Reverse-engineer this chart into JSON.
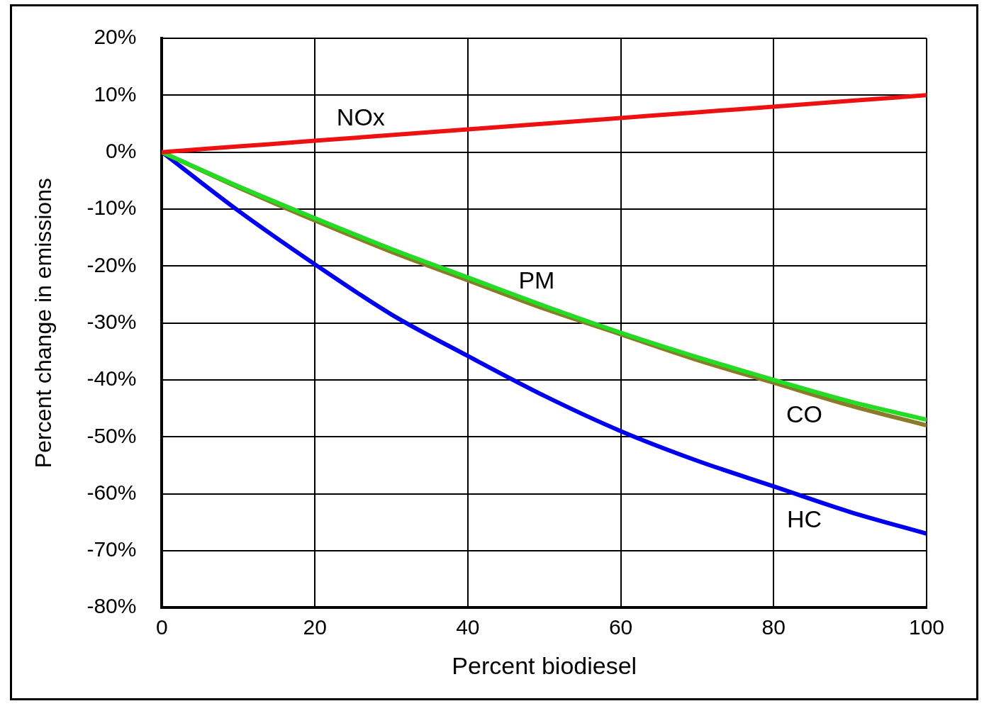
{
  "chart_data": {
    "type": "line",
    "xlabel": "Percent biodiesel",
    "ylabel": "Percent change in emissions",
    "x": [
      0,
      10,
      20,
      30,
      40,
      50,
      60,
      70,
      80,
      90,
      100
    ],
    "series": [
      {
        "name": "NOx",
        "color": "#ee1111",
        "values": [
          0,
          1,
          2,
          3,
          4,
          5,
          6,
          7,
          8,
          9,
          10
        ]
      },
      {
        "name": "PM",
        "color": "#22dd22",
        "values": [
          0,
          -6,
          -11.6,
          -17,
          -22,
          -27,
          -31.7,
          -36,
          -40,
          -43.8,
          -47
        ]
      },
      {
        "name": "CO",
        "color": "#8b7a2a",
        "values": [
          0,
          -6.2,
          -12,
          -17.5,
          -22.5,
          -27.5,
          -32,
          -36.5,
          -40.5,
          -44.5,
          -48
        ]
      },
      {
        "name": "HC",
        "color": "#0000ee",
        "values": [
          0,
          -10.3,
          -19.7,
          -28.5,
          -35.8,
          -42.8,
          -49,
          -54.2,
          -58.7,
          -63.2,
          -67
        ]
      }
    ],
    "xlim": [
      0,
      100
    ],
    "xticks": [
      0,
      20,
      40,
      60,
      80,
      100
    ],
    "ylim": [
      -80,
      20
    ],
    "yticks": [
      {
        "value": -80,
        "label": "-80%"
      },
      {
        "value": -70,
        "label": "-70%"
      },
      {
        "value": -60,
        "label": "-60%"
      },
      {
        "value": -50,
        "label": "-50%"
      },
      {
        "value": -40,
        "label": "-40%"
      },
      {
        "value": -30,
        "label": "-30%"
      },
      {
        "value": -20,
        "label": "-20%"
      },
      {
        "value": -10,
        "label": "-10%"
      },
      {
        "value": 0,
        "label": "0%"
      },
      {
        "value": 10,
        "label": "10%"
      },
      {
        "value": 20,
        "label": "20%"
      }
    ],
    "grid": true,
    "legend": false,
    "marker": "none",
    "line_style": "solid"
  }
}
